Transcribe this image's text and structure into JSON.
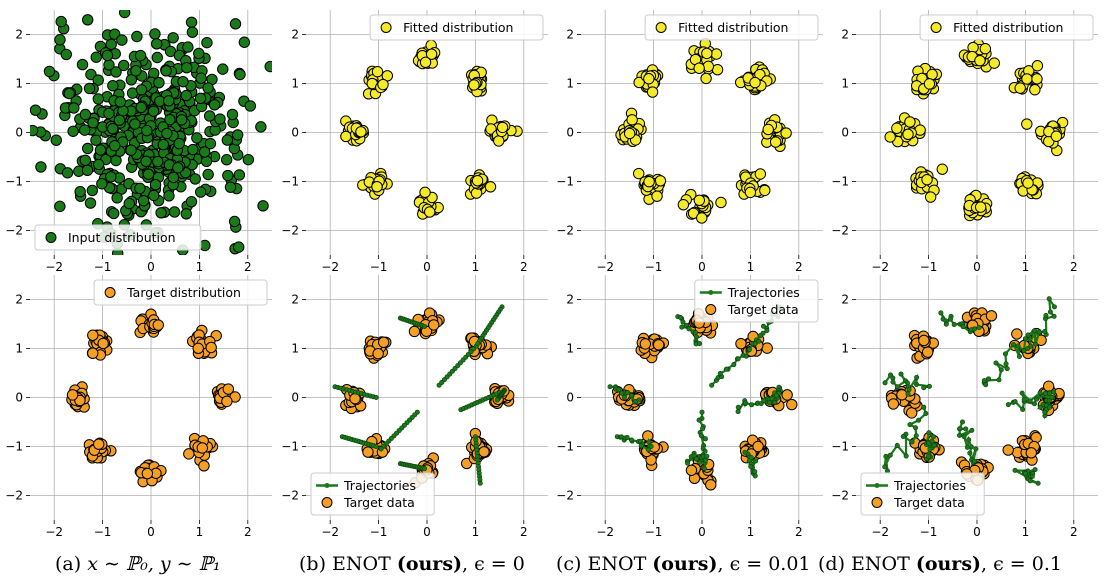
{
  "figure": {
    "colors": {
      "input_fill": "#1a7a1a",
      "fitted_fill": "#f5ea2a",
      "target_fill": "#f5a025",
      "trajectory": "#1a7a1a",
      "grid": "#b0b0b0"
    },
    "axes": {
      "xlim": [
        -2.5,
        2.5
      ],
      "ylim": [
        -2.5,
        2.5
      ],
      "xticks": [
        -2,
        -1,
        0,
        1,
        2
      ],
      "yticks": [
        -2,
        -1,
        0,
        1,
        2
      ]
    },
    "modes": [
      [
        1.5,
        0.0
      ],
      [
        1.06,
        1.06
      ],
      [
        0.0,
        1.5
      ],
      [
        -1.06,
        1.06
      ],
      [
        -1.5,
        0.0
      ],
      [
        -1.06,
        -1.06
      ],
      [
        0.0,
        -1.5
      ],
      [
        1.06,
        -1.06
      ]
    ],
    "legend_labels": {
      "input": "Input distribution",
      "fitted": "Fitted distribution",
      "target": "Target distribution",
      "trajectories": "Trajectories",
      "target_data": "Target data"
    }
  },
  "chart_data": [
    {
      "type": "scatter",
      "id": "a-top",
      "title": "",
      "legend": [
        "Input distribution"
      ],
      "legend_loc": "lower-left",
      "series": [
        {
          "name": "Input distribution",
          "distribution": "gaussian",
          "mean": [
            0,
            0
          ],
          "std": 1.0,
          "n": 500,
          "color": "#1a7a1a"
        }
      ]
    },
    {
      "type": "scatter",
      "id": "b-top",
      "legend": [
        "Fitted distribution"
      ],
      "legend_loc": "upper-right",
      "series": [
        {
          "name": "Fitted distribution",
          "distribution": "8-gaussian ring",
          "radius": 1.5,
          "std": 0.1,
          "n_per_mode": 25,
          "color": "#f5ea2a"
        }
      ]
    },
    {
      "type": "scatter",
      "id": "c-top",
      "legend": [
        "Fitted distribution"
      ],
      "legend_loc": "upper-right",
      "series": [
        {
          "name": "Fitted distribution",
          "distribution": "8-gaussian ring",
          "radius": 1.5,
          "std": 0.12,
          "n_per_mode": 25,
          "color": "#f5ea2a"
        }
      ]
    },
    {
      "type": "scatter",
      "id": "d-top",
      "legend": [
        "Fitted distribution"
      ],
      "legend_loc": "upper-right",
      "series": [
        {
          "name": "Fitted distribution",
          "distribution": "8-gaussian ring",
          "radius": 1.5,
          "std": 0.12,
          "n_per_mode": 25,
          "color": "#f5ea2a"
        }
      ]
    },
    {
      "type": "scatter",
      "id": "a-bottom",
      "legend": [
        "Target distribution"
      ],
      "legend_loc": "upper-right",
      "series": [
        {
          "name": "Target distribution",
          "distribution": "8-gaussian ring",
          "radius": 1.5,
          "std": 0.1,
          "n_per_mode": 25,
          "color": "#f5a025"
        }
      ]
    },
    {
      "type": "line",
      "id": "b-bottom",
      "legend": [
        "Trajectories",
        "Target data"
      ],
      "legend_loc": "lower-left",
      "epsilon": 0,
      "trajectories": [
        [
          [
            -1.9,
            0.22
          ],
          [
            -1.05,
            0.0
          ]
        ],
        [
          [
            -1.75,
            -0.8
          ],
          [
            -1.05,
            -1.0
          ]
        ],
        [
          [
            -0.55,
            1.62
          ],
          [
            -0.05,
            1.45
          ]
        ],
        [
          [
            0.25,
            0.25
          ],
          [
            1.02,
            1.05
          ]
        ],
        [
          [
            1.55,
            1.85
          ],
          [
            1.05,
            1.1
          ]
        ],
        [
          [
            0.7,
            -0.25
          ],
          [
            1.5,
            0.1
          ]
        ],
        [
          [
            1.6,
            0.15
          ],
          [
            1.45,
            -0.05
          ]
        ],
        [
          [
            -0.55,
            -1.35
          ],
          [
            -0.05,
            -1.45
          ]
        ],
        [
          [
            -0.2,
            -0.3
          ],
          [
            -0.95,
            -1.05
          ]
        ],
        [
          [
            1.0,
            -0.8
          ],
          [
            1.1,
            -1.75
          ]
        ]
      ],
      "series": [
        {
          "name": "Target data",
          "distribution": "8-gaussian ring",
          "radius": 1.5,
          "std": 0.1,
          "n_per_mode": 25,
          "color": "#f5a025"
        }
      ]
    },
    {
      "type": "line",
      "id": "c-bottom",
      "legend": [
        "Trajectories",
        "Target data"
      ],
      "legend_loc": "upper-right",
      "epsilon": 0.01,
      "trajectories": [
        [
          [
            -1.9,
            0.22
          ],
          [
            -1.3,
            -0.05
          ]
        ],
        [
          [
            -1.75,
            -0.8
          ],
          [
            -1.05,
            -1.0
          ]
        ],
        [
          [
            -0.5,
            1.65
          ],
          [
            -0.05,
            1.1
          ]
        ],
        [
          [
            0.2,
            0.25
          ],
          [
            1.05,
            1.1
          ]
        ],
        [
          [
            1.6,
            1.85
          ],
          [
            1.1,
            1.1
          ]
        ],
        [
          [
            0.75,
            -0.2
          ],
          [
            1.5,
            0.0
          ]
        ],
        [
          [
            1.6,
            0.2
          ],
          [
            1.5,
            -0.1
          ]
        ],
        [
          [
            0.0,
            -0.3
          ],
          [
            0.05,
            -1.45
          ]
        ],
        [
          [
            -0.3,
            -1.3
          ],
          [
            0.1,
            -1.2
          ]
        ],
        [
          [
            0.95,
            -1.15
          ],
          [
            1.1,
            -1.6
          ]
        ]
      ],
      "series": [
        {
          "name": "Target data",
          "distribution": "8-gaussian ring",
          "radius": 1.5,
          "std": 0.1,
          "n_per_mode": 25,
          "color": "#f5a025"
        }
      ]
    },
    {
      "type": "line",
      "id": "d-bottom",
      "legend": [
        "Trajectories",
        "Target data"
      ],
      "legend_loc": "lower-left",
      "epsilon": 0.1,
      "trajectories": [
        [
          [
            -1.9,
            0.3
          ],
          [
            -1.1,
            0.2
          ]
        ],
        [
          [
            -1.85,
            -1.5
          ],
          [
            -1.1,
            -0.2
          ]
        ],
        [
          [
            -0.9,
            -0.8
          ],
          [
            -1.0,
            -1.2
          ]
        ],
        [
          [
            -0.7,
            1.6
          ],
          [
            -0.05,
            1.4
          ]
        ],
        [
          [
            0.15,
            0.3
          ],
          [
            1.0,
            1.2
          ]
        ],
        [
          [
            1.6,
            1.85
          ],
          [
            1.05,
            1.0
          ]
        ],
        [
          [
            0.75,
            -0.1
          ],
          [
            1.55,
            0.0
          ]
        ],
        [
          [
            1.5,
            0.1
          ],
          [
            1.4,
            -0.3
          ]
        ],
        [
          [
            -0.3,
            -0.5
          ],
          [
            -0.05,
            -1.3
          ]
        ],
        [
          [
            1.05,
            -1.5
          ],
          [
            1.1,
            -1.7
          ]
        ]
      ],
      "series": [
        {
          "name": "Target data",
          "distribution": "8-gaussian ring",
          "radius": 1.5,
          "std": 0.12,
          "n_per_mode": 25,
          "color": "#f5a025"
        }
      ]
    }
  ],
  "captions": {
    "a": {
      "label": "(a)",
      "formula": "x ∼ ℙ₀, y ∼ ℙ₁"
    },
    "b": {
      "prefix": "(b) ENOT",
      "bold": "(ours)",
      "suffix": ", ϵ = 0"
    },
    "c": {
      "prefix": "(c) ENOT",
      "bold": "(ours)",
      "suffix": ", ϵ = 0.01"
    },
    "d": {
      "prefix": "(d) ENOT",
      "bold": "(ours)",
      "suffix": ", ϵ = 0.1"
    }
  }
}
